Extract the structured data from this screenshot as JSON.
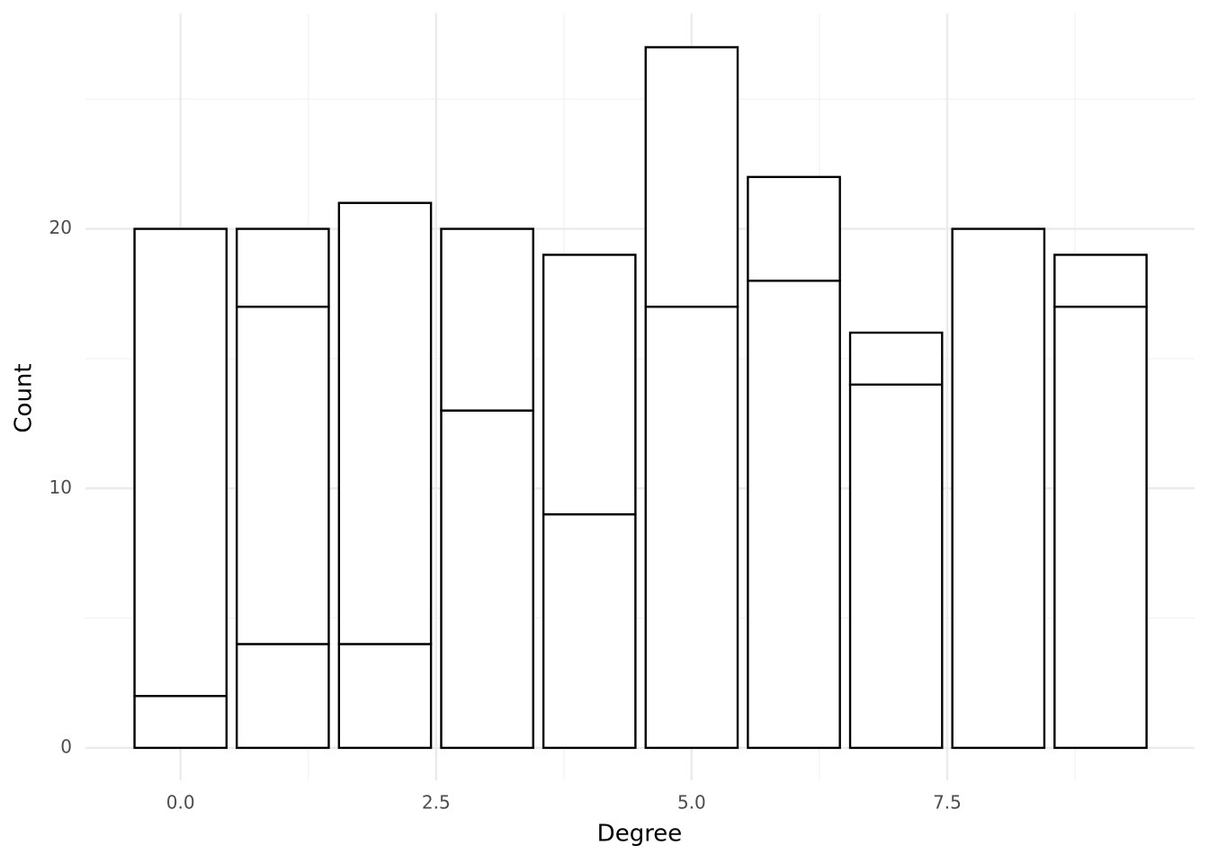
{
  "chart_data": {
    "type": "stacked_bar",
    "x_label": "Degree",
    "y_label": "Count",
    "x": [
      0,
      1,
      2,
      3,
      4,
      5,
      6,
      7,
      8,
      9
    ],
    "series": [
      {
        "values": [
          2,
          4,
          4,
          13,
          9,
          17,
          18,
          14,
          20,
          17
        ]
      },
      {
        "values": [
          18,
          13,
          17,
          7,
          10,
          10,
          4,
          2,
          null,
          2
        ]
      },
      {
        "values": [
          null,
          3,
          null,
          null,
          null,
          null,
          null,
          null,
          null,
          null
        ]
      }
    ],
    "color": "#ffffff",
    "edgecolor": "#000000",
    "xlim": [
      -0.93,
      9.92
    ],
    "xticks": [
      {
        "value": 0,
        "label": "0.0"
      },
      {
        "value": 2.5,
        "label": "2.5"
      },
      {
        "value": 5,
        "label": "5.0"
      },
      {
        "value": 7.5,
        "label": "7.5"
      }
    ],
    "ylim": [
      -1.25,
      28.3
    ],
    "yticks": [
      0,
      10,
      20
    ],
    "grid": true
  }
}
